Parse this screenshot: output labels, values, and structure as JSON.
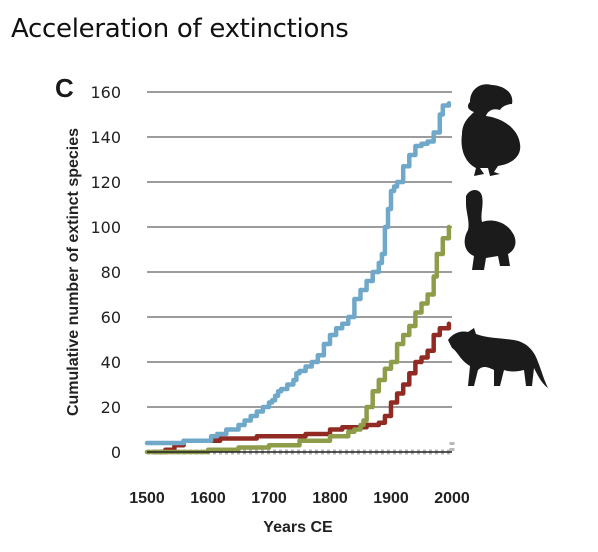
{
  "title": "Acceleration of extinctions",
  "panel_label": "C",
  "chart_data": {
    "type": "line",
    "title": "Acceleration of extinctions",
    "xlabel": "Years CE",
    "ylabel": "Cumulative number of extinct species",
    "xlim": [
      1500,
      2000
    ],
    "ylim": [
      0,
      160
    ],
    "xticks": [
      1500,
      1600,
      1700,
      1800,
      1900,
      2000
    ],
    "yticks": [
      0,
      20,
      40,
      60,
      80,
      100,
      120,
      140,
      160
    ],
    "grid": "horizontal",
    "legend": "none; silhouettes of a bird, a tortoise and a thylacine at the right",
    "series": [
      {
        "color": "#6fa8c8",
        "style": "solid",
        "x": [
          1500,
          1560,
          1595,
          1605,
          1615,
          1630,
          1650,
          1660,
          1670,
          1680,
          1690,
          1700,
          1705,
          1710,
          1715,
          1720,
          1730,
          1740,
          1745,
          1750,
          1760,
          1770,
          1780,
          1790,
          1800,
          1810,
          1820,
          1830,
          1840,
          1850,
          1860,
          1870,
          1880,
          1885,
          1890,
          1895,
          1900,
          1905,
          1910,
          1920,
          1930,
          1940,
          1950,
          1960,
          1970,
          1980,
          1985,
          1995
        ],
        "y": [
          4,
          5,
          5,
          7,
          8,
          10,
          12,
          14,
          16,
          18,
          20,
          22,
          23,
          25,
          27,
          28,
          30,
          32,
          35,
          36,
          38,
          40,
          43,
          48,
          52,
          55,
          57,
          60,
          68,
          72,
          76,
          80,
          84,
          88,
          100,
          108,
          116,
          118,
          120,
          127,
          132,
          136,
          137,
          138,
          142,
          150,
          154,
          155
        ]
      },
      {
        "color": "#8e9d4a",
        "style": "solid",
        "x": [
          1500,
          1600,
          1650,
          1700,
          1750,
          1800,
          1830,
          1840,
          1850,
          1855,
          1860,
          1870,
          1880,
          1890,
          1900,
          1910,
          1920,
          1930,
          1940,
          1950,
          1960,
          1970,
          1975,
          1985,
          1995
        ],
        "y": [
          0,
          1,
          2,
          3,
          5,
          7,
          9,
          10,
          12,
          14,
          20,
          27,
          32,
          37,
          40,
          48,
          52,
          56,
          62,
          66,
          70,
          78,
          88,
          95,
          100
        ]
      },
      {
        "color": "#922a24",
        "style": "solid",
        "x": [
          1510,
          1530,
          1545,
          1560,
          1600,
          1620,
          1640,
          1680,
          1720,
          1760,
          1790,
          1800,
          1820,
          1850,
          1860,
          1870,
          1880,
          1890,
          1900,
          1910,
          1920,
          1930,
          1940,
          1950,
          1960,
          1970,
          1980,
          1995
        ],
        "y": [
          0,
          1,
          3,
          5,
          5,
          6,
          6,
          7,
          7,
          8,
          8,
          10,
          11,
          11,
          12,
          12,
          13,
          16,
          22,
          26,
          30,
          35,
          40,
          42,
          45,
          52,
          55,
          57
        ]
      },
      {
        "color": "#b9b9b9",
        "style": "dotted",
        "x": [
          1500,
          2000
        ],
        "y": [
          0,
          5
        ]
      }
    ]
  }
}
